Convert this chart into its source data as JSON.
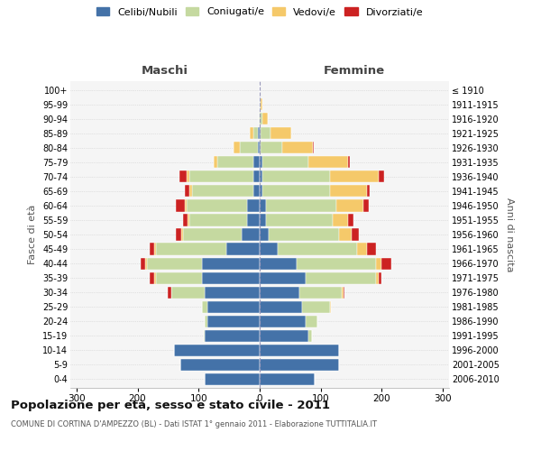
{
  "age_groups": [
    "0-4",
    "5-9",
    "10-14",
    "15-19",
    "20-24",
    "25-29",
    "30-34",
    "35-39",
    "40-44",
    "45-49",
    "50-54",
    "55-59",
    "60-64",
    "65-69",
    "70-74",
    "75-79",
    "80-84",
    "85-89",
    "90-94",
    "95-99",
    "100+"
  ],
  "birth_years": [
    "2006-2010",
    "2001-2005",
    "1996-2000",
    "1991-1995",
    "1986-1990",
    "1981-1985",
    "1976-1980",
    "1971-1975",
    "1966-1970",
    "1961-1965",
    "1956-1960",
    "1951-1955",
    "1946-1950",
    "1941-1945",
    "1936-1940",
    "1931-1935",
    "1926-1930",
    "1921-1925",
    "1916-1920",
    "1911-1915",
    "≤ 1910"
  ],
  "males": {
    "celibi": [
      90,
      130,
      140,
      90,
      85,
      85,
      90,
      95,
      95,
      55,
      30,
      20,
      20,
      10,
      10,
      10,
      3,
      3,
      0,
      0,
      0
    ],
    "coniugati": [
      0,
      0,
      0,
      2,
      5,
      10,
      55,
      75,
      90,
      115,
      95,
      95,
      100,
      100,
      105,
      60,
      30,
      8,
      2,
      0,
      0
    ],
    "vedovi": [
      0,
      0,
      0,
      0,
      0,
      0,
      0,
      2,
      2,
      2,
      3,
      3,
      3,
      5,
      5,
      5,
      10,
      5,
      0,
      0,
      0
    ],
    "divorziati": [
      0,
      0,
      0,
      0,
      0,
      0,
      5,
      8,
      8,
      8,
      10,
      8,
      15,
      8,
      12,
      0,
      0,
      0,
      0,
      0,
      0
    ]
  },
  "females": {
    "nubili": [
      90,
      130,
      130,
      80,
      75,
      70,
      65,
      75,
      60,
      30,
      15,
      10,
      10,
      5,
      5,
      4,
      2,
      2,
      0,
      0,
      0
    ],
    "coniugate": [
      0,
      0,
      0,
      5,
      20,
      45,
      70,
      115,
      130,
      130,
      115,
      110,
      115,
      110,
      110,
      75,
      35,
      15,
      5,
      2,
      0
    ],
    "vedove": [
      0,
      0,
      0,
      0,
      0,
      2,
      2,
      5,
      10,
      15,
      20,
      25,
      45,
      60,
      80,
      65,
      50,
      35,
      8,
      3,
      0
    ],
    "divorziate": [
      0,
      0,
      0,
      0,
      0,
      0,
      2,
      5,
      15,
      15,
      12,
      8,
      8,
      5,
      8,
      3,
      2,
      0,
      0,
      0,
      0
    ]
  },
  "colors": {
    "celibi": "#4472a8",
    "coniugati": "#c5d9a0",
    "vedovi": "#f5c96a",
    "divorziati": "#cc2222"
  },
  "xlim": 310,
  "title": "Popolazione per età, sesso e stato civile - 2011",
  "subtitle": "COMUNE DI CORTINA D'AMPEZZO (BL) - Dati ISTAT 1° gennaio 2011 - Elaborazione TUTTITALIA.IT",
  "xlabel_left": "Maschi",
  "xlabel_right": "Femmine",
  "ylabel_left": "Fasce di età",
  "ylabel_right": "Anni di nascita",
  "bg_color": "#f5f5f5",
  "grid_color": "#cccccc"
}
